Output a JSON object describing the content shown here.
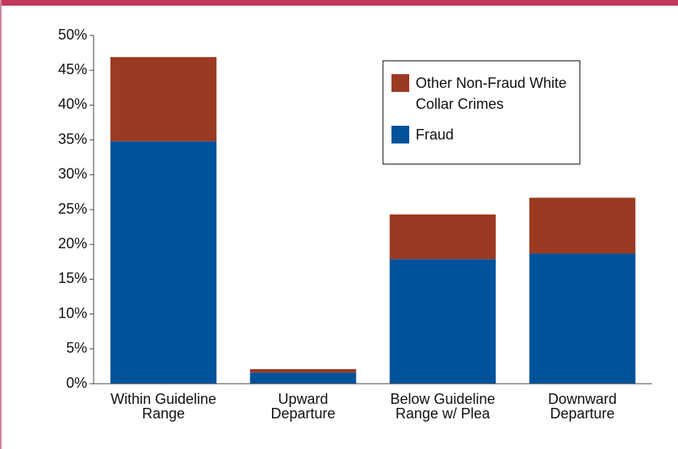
{
  "chart_data": {
    "type": "stacked_bar",
    "categories": [
      [
        "Within Guideline",
        "Range"
      ],
      [
        "Upward",
        "Departure"
      ],
      [
        "Below Guideline",
        "Range w/ Plea"
      ],
      [
        "Downward",
        "Departure"
      ]
    ],
    "series": [
      {
        "name": "Fraud",
        "color": "#00529b",
        "values": [
          34.8,
          1.6,
          17.9,
          18.7
        ]
      },
      {
        "name": "Other Non-Fraud White Collar Crimes",
        "color": "#9b3a22",
        "values": [
          12.1,
          0.5,
          6.4,
          8.0
        ]
      }
    ],
    "ylim": [
      0,
      50
    ],
    "yticks": [
      {
        "value": 0,
        "label": "0%"
      },
      {
        "value": 5,
        "label": "5%"
      },
      {
        "value": 10,
        "label": "10%"
      },
      {
        "value": 15,
        "label": "15%"
      },
      {
        "value": 20,
        "label": "20%"
      },
      {
        "value": 25,
        "label": "25%"
      },
      {
        "value": 30,
        "label": "30%"
      },
      {
        "value": 35,
        "label": "35%"
      },
      {
        "value": 40,
        "label": "40%"
      },
      {
        "value": 45,
        "label": "45%"
      },
      {
        "value": 50,
        "label": "50%"
      }
    ],
    "legend": "top-right"
  }
}
